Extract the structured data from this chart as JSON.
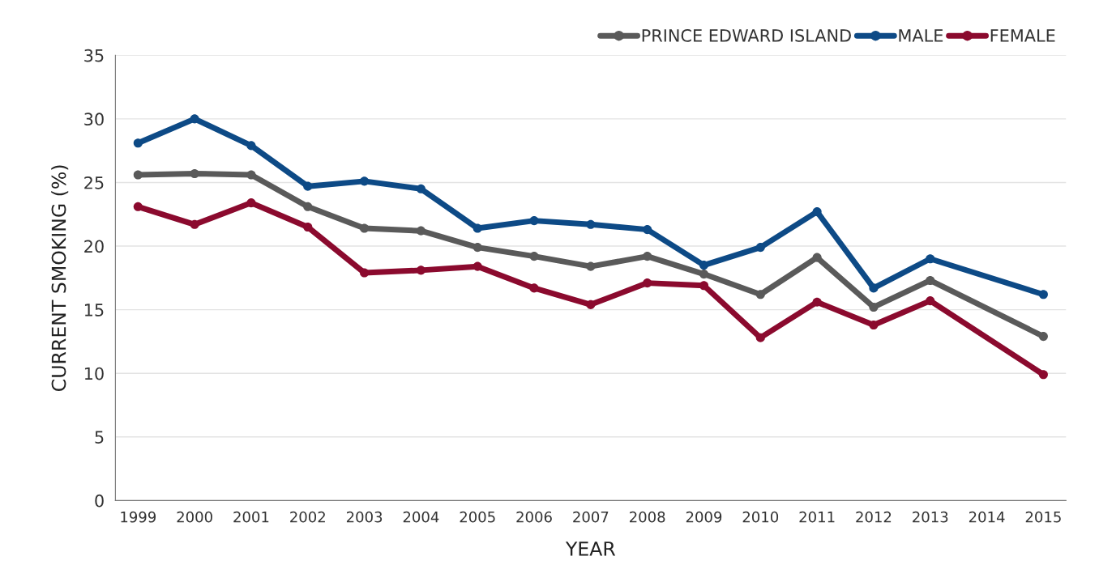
{
  "chart_data": {
    "type": "line",
    "xlabel": "YEAR",
    "ylabel": "CURRENT SMOKING (%)",
    "categories": [
      "1999",
      "2000",
      "2001",
      "2002",
      "2003",
      "2004",
      "2005",
      "2006",
      "2007",
      "2008",
      "2009",
      "2010",
      "2011",
      "2012",
      "2013",
      "2014",
      "2015"
    ],
    "series": [
      {
        "name": "PRINCE EDWARD ISLAND",
        "color": "#5a5a5a",
        "values": [
          25.6,
          25.7,
          25.6,
          23.1,
          21.4,
          21.2,
          19.9,
          19.2,
          18.4,
          19.2,
          17.8,
          16.2,
          19.1,
          15.2,
          17.3,
          null,
          12.9
        ]
      },
      {
        "name": "MALE",
        "color": "#0d4a86",
        "values": [
          28.1,
          30.0,
          27.9,
          24.7,
          25.1,
          24.5,
          21.4,
          22.0,
          21.7,
          21.3,
          18.5,
          19.9,
          22.7,
          16.7,
          19.0,
          null,
          16.2
        ]
      },
      {
        "name": "FEMALE",
        "color": "#8b0a2e",
        "values": [
          23.1,
          21.7,
          23.4,
          21.5,
          17.9,
          18.1,
          18.4,
          16.7,
          15.4,
          17.1,
          16.9,
          12.8,
          15.6,
          13.8,
          15.7,
          null,
          9.9
        ]
      }
    ],
    "ylim": [
      0,
      35
    ],
    "yticks": [
      0,
      5,
      10,
      15,
      20,
      25,
      30,
      35
    ],
    "grid": "y",
    "legend": "top right",
    "marker": "circle",
    "line_style": "solid"
  }
}
